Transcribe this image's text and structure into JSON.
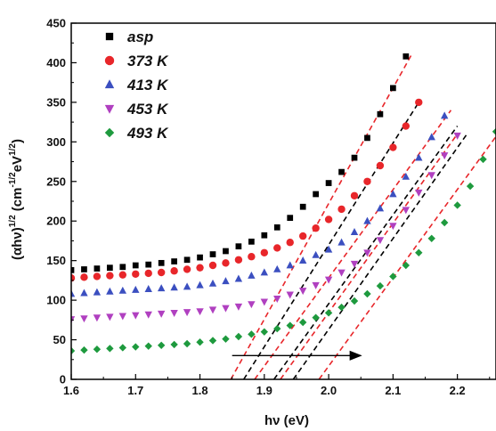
{
  "chart_data": {
    "type": "scatter",
    "xlabel": "hν (eV)",
    "ylabel": "(αhν)1/2 (cm-1/2eV1/2)",
    "ylabel_parts": {
      "base": "(αhν)",
      "exp1": "1/2",
      "mid": " (cm",
      "exp2": "-1/2",
      "mid2": "eV",
      "exp3": "1/2",
      "end": ")"
    },
    "xlim": [
      1.6,
      2.26
    ],
    "ylim": [
      0,
      450
    ],
    "xticks": [
      "1.6",
      "1.7",
      "1.8",
      "1.9",
      "2.0",
      "2.1",
      "2.2"
    ],
    "yticks": [
      "0",
      "50",
      "100",
      "150",
      "200",
      "250",
      "300",
      "350",
      "400",
      "450"
    ],
    "grid": false,
    "legend_position": "top-left",
    "series": [
      {
        "name": "asp",
        "marker": "square",
        "color": "#000000",
        "x": [
          1.6,
          1.62,
          1.64,
          1.66,
          1.68,
          1.7,
          1.72,
          1.74,
          1.76,
          1.78,
          1.8,
          1.82,
          1.84,
          1.86,
          1.88,
          1.9,
          1.92,
          1.94,
          1.96,
          1.98,
          2.0,
          2.02,
          2.04,
          2.06,
          2.08,
          2.1,
          2.12
        ],
        "y": [
          138,
          139,
          140,
          141,
          142,
          144,
          145,
          147,
          149,
          151,
          154,
          158,
          162,
          168,
          174,
          182,
          192,
          204,
          218,
          234,
          248,
          262,
          280,
          305,
          335,
          368,
          408
        ]
      },
      {
        "name": "373 K",
        "marker": "circle",
        "color": "#e8262a",
        "x": [
          1.6,
          1.62,
          1.64,
          1.66,
          1.68,
          1.7,
          1.72,
          1.74,
          1.76,
          1.78,
          1.8,
          1.82,
          1.84,
          1.86,
          1.88,
          1.9,
          1.92,
          1.94,
          1.96,
          1.98,
          2.0,
          2.02,
          2.04,
          2.06,
          2.08,
          2.1,
          2.12,
          2.14
        ],
        "y": [
          128,
          129,
          130,
          131,
          132,
          133,
          134,
          135,
          137,
          139,
          141,
          144,
          147,
          151,
          155,
          160,
          166,
          173,
          181,
          191,
          202,
          215,
          232,
          250,
          270,
          293,
          320,
          350
        ]
      },
      {
        "name": "413 K",
        "marker": "triangle-up",
        "color": "#3b4fc0",
        "x": [
          1.6,
          1.62,
          1.64,
          1.66,
          1.68,
          1.7,
          1.72,
          1.74,
          1.76,
          1.78,
          1.8,
          1.82,
          1.84,
          1.86,
          1.88,
          1.9,
          1.92,
          1.94,
          1.96,
          1.98,
          2.0,
          2.02,
          2.04,
          2.06,
          2.08,
          2.1,
          2.12,
          2.14,
          2.16,
          2.18
        ],
        "y": [
          108,
          109,
          110,
          111,
          112,
          113,
          114,
          115,
          116,
          117,
          119,
          121,
          124,
          127,
          131,
          135,
          139,
          144,
          150,
          157,
          164,
          173,
          186,
          200,
          216,
          234,
          256,
          280,
          306,
          333
        ]
      },
      {
        "name": "453 K",
        "marker": "triangle-down",
        "color": "#b040c0",
        "x": [
          1.6,
          1.62,
          1.64,
          1.66,
          1.68,
          1.7,
          1.72,
          1.74,
          1.76,
          1.78,
          1.8,
          1.82,
          1.84,
          1.86,
          1.88,
          1.9,
          1.92,
          1.94,
          1.96,
          1.98,
          2.0,
          2.02,
          2.04,
          2.06,
          2.08,
          2.1,
          2.12,
          2.14,
          2.16,
          2.18,
          2.2
        ],
        "y": [
          76,
          77,
          78,
          79,
          80,
          81,
          82,
          83,
          84,
          85,
          86,
          88,
          90,
          92,
          95,
          98,
          102,
          107,
          112,
          119,
          126,
          135,
          146,
          160,
          176,
          194,
          214,
          236,
          258,
          283,
          308
        ]
      },
      {
        "name": "493 K",
        "marker": "diamond",
        "color": "#1e9a3e",
        "x": [
          1.6,
          1.62,
          1.64,
          1.66,
          1.68,
          1.7,
          1.72,
          1.74,
          1.76,
          1.78,
          1.8,
          1.82,
          1.84,
          1.86,
          1.88,
          1.9,
          1.92,
          1.94,
          1.96,
          1.98,
          2.0,
          2.02,
          2.04,
          2.06,
          2.08,
          2.1,
          2.12,
          2.14,
          2.16,
          2.18,
          2.2,
          2.22,
          2.24,
          2.26
        ],
        "y": [
          36,
          37,
          38,
          39,
          40,
          41,
          42,
          43,
          44,
          45,
          47,
          49,
          51,
          54,
          57,
          60,
          64,
          68,
          72,
          78,
          84,
          91,
          99,
          108,
          118,
          130,
          144,
          160,
          178,
          198,
          220,
          244,
          278,
          313
        ]
      }
    ],
    "fit_lines": [
      {
        "color": "#e8262a",
        "x": [
          1.848,
          2.13
        ],
        "y": [
          0,
          412
        ]
      },
      {
        "color": "#000000",
        "x": [
          1.868,
          2.14
        ],
        "y": [
          0,
          350
        ]
      },
      {
        "color": "#e8262a",
        "x": [
          1.885,
          2.19
        ],
        "y": [
          0,
          340
        ]
      },
      {
        "color": "#000000",
        "x": [
          1.915,
          2.2
        ],
        "y": [
          0,
          320
        ]
      },
      {
        "color": "#e8262a",
        "x": [
          1.925,
          2.2
        ],
        "y": [
          0,
          310
        ]
      },
      {
        "color": "#000000",
        "x": [
          1.945,
          2.215
        ],
        "y": [
          0,
          310
        ]
      },
      {
        "color": "#e8262a",
        "x": [
          1.985,
          2.27
        ],
        "y": [
          0,
          318
        ]
      }
    ],
    "arrow": {
      "x1": 1.85,
      "x2": 2.05,
      "y": 30
    }
  }
}
